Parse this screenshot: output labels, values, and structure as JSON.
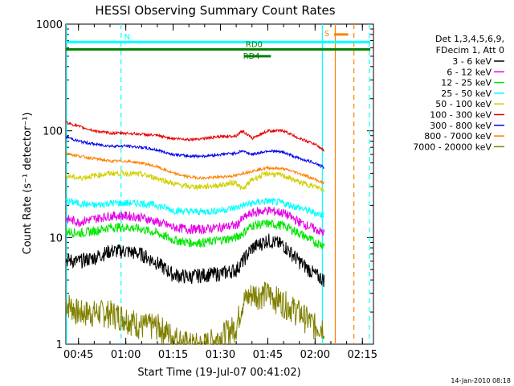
{
  "chart_data": {
    "type": "line",
    "title": "HESSI Observing Summary Count Rates",
    "xlabel": "Start Time (19-Jul-07 00:41:02)",
    "ylabel": "Count Rate (s⁻¹ detector⁻¹)",
    "x_ticks": [
      "00:45",
      "01:00",
      "01:15",
      "01:30",
      "01:45",
      "02:00",
      "02:15"
    ],
    "x_tick_minutes": [
      45,
      60,
      75,
      90,
      105,
      120,
      135
    ],
    "xlim_minutes": [
      41.0,
      138.5
    ],
    "y_scale": "log",
    "y_ticks": [
      "1",
      "10",
      "100",
      "1000"
    ],
    "ylim": [
      1,
      1000
    ],
    "legend_header": [
      "Det 1,3,4,5,6,9,",
      "FDecim 1, Att 0"
    ],
    "legend_placement": "right",
    "x_minutes": [
      41,
      45,
      50,
      55,
      60,
      65,
      70,
      75,
      80,
      85,
      90,
      95,
      97,
      100,
      105,
      110,
      115,
      120,
      123
    ],
    "series": [
      {
        "name": "3 - 6 keV",
        "color": "#000000",
        "values": [
          6.2,
          6.0,
          6.5,
          7.5,
          7.5,
          7.0,
          5.8,
          4.5,
          4.3,
          4.5,
          4.6,
          5.0,
          6.0,
          8.0,
          9.5,
          8.5,
          6.0,
          4.5,
          4.0
        ]
      },
      {
        "name": "6 - 12 keV",
        "color": "#e600e6",
        "values": [
          15,
          14,
          15,
          16,
          16,
          15.5,
          14,
          12.5,
          12,
          12,
          12.5,
          13,
          15,
          17,
          18,
          17,
          14,
          12,
          11
        ]
      },
      {
        "name": "12 - 25 keV",
        "color": "#00e600",
        "values": [
          11.5,
          11,
          11.5,
          12.5,
          12.5,
          12,
          11,
          9.5,
          9,
          9,
          9.5,
          10,
          11,
          13,
          13.5,
          13,
          11,
          9,
          8.5
        ]
      },
      {
        "name": "25 - 50 keV",
        "color": "#00ffff",
        "values": [
          22,
          21,
          20,
          21,
          21,
          21,
          20,
          18,
          17.5,
          17.5,
          18,
          19,
          20,
          21,
          22,
          21,
          19,
          17,
          16
        ]
      },
      {
        "name": "50 - 100 keV",
        "color": "#d0d000",
        "values": [
          38,
          36,
          38,
          40,
          40,
          39,
          36,
          32,
          30,
          30,
          31,
          33,
          28,
          35,
          40,
          38,
          33,
          30,
          28
        ]
      },
      {
        "name": "100 - 300 keV",
        "color": "#e60000",
        "values": [
          120,
          110,
          100,
          95,
          95,
          93,
          90,
          85,
          83,
          85,
          88,
          90,
          100,
          85,
          100,
          100,
          85,
          75,
          65
        ]
      },
      {
        "name": "300 - 800 keV",
        "color": "#0000e6",
        "values": [
          88,
          80,
          75,
          72,
          72,
          70,
          66,
          60,
          58,
          58,
          60,
          62,
          65,
          60,
          65,
          63,
          55,
          50,
          45
        ]
      },
      {
        "name": "800 - 7000 keV",
        "color": "#ff8000",
        "values": [
          62,
          58,
          55,
          52,
          52,
          50,
          46,
          40,
          37,
          36,
          37,
          38,
          40,
          42,
          45,
          44,
          40,
          35,
          32
        ]
      },
      {
        "name": "7000 - 20000 keV",
        "color": "#808000",
        "values": [
          2.5,
          2.0,
          2.0,
          2.0,
          1.8,
          1.5,
          1.5,
          1.2,
          1.0,
          1.0,
          1.2,
          1.5,
          2.5,
          3.0,
          3.0,
          2.5,
          2.0,
          1.5,
          1.5
        ]
      }
    ],
    "annotations": [
      {
        "label": "N",
        "color": "#00ffff",
        "y_value": 680,
        "x_start_minutes": 41,
        "x_end_minutes": 137.5
      },
      {
        "label": "S",
        "color": "#ff8000",
        "y_value": 800,
        "x_start_minutes": 126,
        "x_end_minutes": 130.5
      },
      {
        "label": "RD0",
        "color": "#008000",
        "y_value": 580,
        "x_start_minutes": 41,
        "x_end_minutes": 137.5
      },
      {
        "label": "RD4",
        "color": "#008000",
        "y_value": 500,
        "x_start_minutes": 97.5,
        "x_end_minutes": 106
      }
    ],
    "vertical_markers": [
      {
        "minute": 41.2,
        "color": "#00ffff",
        "style": "solid"
      },
      {
        "minute": 58.5,
        "color": "#00ffff",
        "style": "dashed"
      },
      {
        "minute": 122.3,
        "color": "#00ffff",
        "style": "solid"
      },
      {
        "minute": 126.4,
        "color": "#ff8000",
        "style": "solid"
      },
      {
        "minute": 132.3,
        "color": "#ff8000",
        "style": "dashed"
      },
      {
        "minute": 137.2,
        "color": "#00ffff",
        "style": "dashed"
      }
    ],
    "footer_date": "14-Jan-2010 08:18"
  }
}
